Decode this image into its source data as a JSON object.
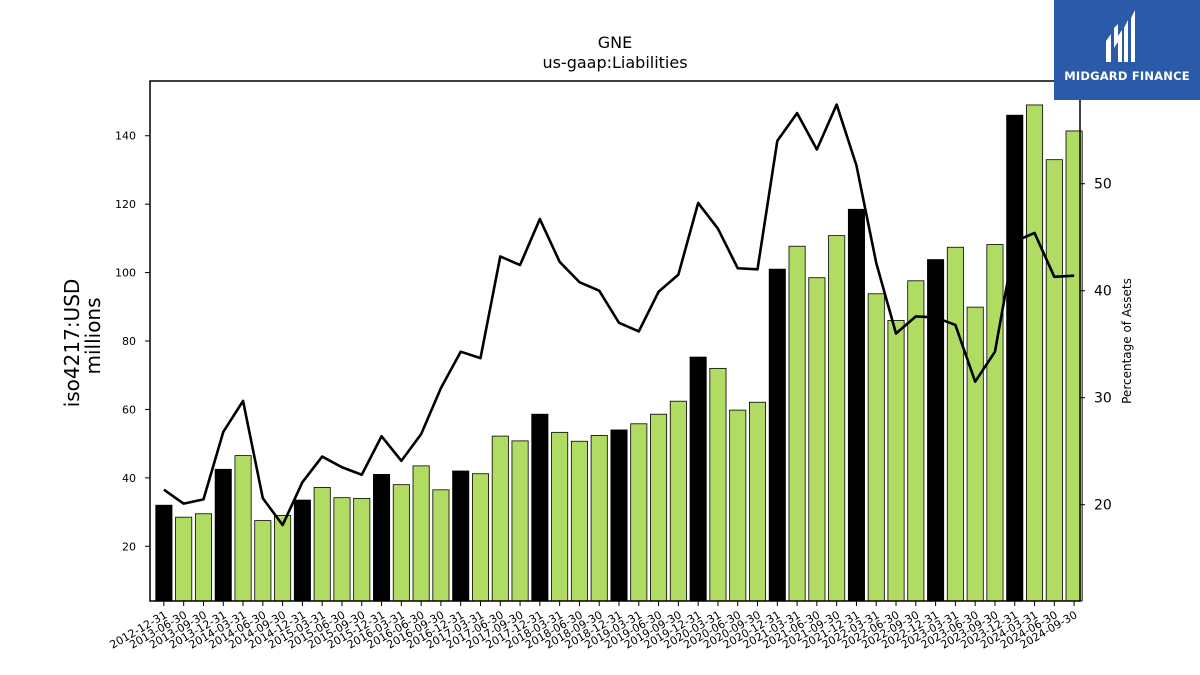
{
  "chart_data": {
    "type": "bar",
    "title": "GNE",
    "subtitle": "us-gaap:Liabilities",
    "ylabel": "iso4217:USD",
    "ylabel2": "millions",
    "y2label": "Percentage of Assets",
    "ylim": [
      4,
      156
    ],
    "y2lim": [
      11,
      59.6
    ],
    "yticks": [
      20,
      40,
      60,
      80,
      100,
      120,
      140
    ],
    "y2ticks": [
      20,
      30,
      40,
      50
    ],
    "categories": [
      "2012-12-31",
      "2013-06-30",
      "2013-09-30",
      "2013-12-31",
      "2014-03-31",
      "2014-06-30",
      "2014-09-30",
      "2014-12-31",
      "2015-03-31",
      "2015-06-30",
      "2015-09-30",
      "2015-12-31",
      "2016-03-31",
      "2016-06-30",
      "2016-09-30",
      "2016-12-31",
      "2017-03-31",
      "2017-06-30",
      "2017-09-30",
      "2017-12-31",
      "2018-03-31",
      "2018-06-30",
      "2018-09-30",
      "2018-12-31",
      "2019-03-31",
      "2019-06-30",
      "2019-09-30",
      "2019-12-31",
      "2020-03-31",
      "2020-06-30",
      "2020-09-30",
      "2020-12-31",
      "2021-03-31",
      "2021-06-30",
      "2021-09-30",
      "2021-12-31",
      "2022-03-31",
      "2022-06-30",
      "2022-09-30",
      "2022-12-31",
      "2023-03-31",
      "2023-06-30",
      "2023-09-30",
      "2023-12-31",
      "2024-03-31",
      "2024-06-30",
      "2024-09-30"
    ],
    "series": [
      {
        "type": "bar",
        "values": [
          32,
          28.5,
          29.5,
          42.5,
          46.5,
          27.5,
          29,
          33.5,
          37.2,
          34.2,
          34,
          41,
          38,
          43.5,
          36.5,
          42,
          41.2,
          52.2,
          50.8,
          58.6,
          53.3,
          50.7,
          52.4,
          54,
          55.8,
          58.6,
          62.4,
          75.3,
          72,
          59.8,
          62.1,
          101,
          107.7,
          98.5,
          110.8,
          118.5,
          93.8,
          86,
          97.6,
          103.8,
          107.4,
          89.9,
          108.2,
          146,
          149,
          133,
          141.4
        ],
        "annual": [
          true,
          false,
          false,
          true,
          false,
          false,
          false,
          true,
          false,
          false,
          false,
          true,
          false,
          false,
          false,
          true,
          false,
          false,
          false,
          true,
          false,
          false,
          false,
          true,
          false,
          false,
          false,
          true,
          false,
          false,
          false,
          true,
          false,
          false,
          false,
          true,
          false,
          false,
          false,
          true,
          false,
          false,
          false,
          true,
          false,
          false,
          false
        ]
      },
      {
        "type": "line",
        "axis": "right",
        "values": [
          21.4,
          20.1,
          20.5,
          26.8,
          29.7,
          20.6,
          18.1,
          22.1,
          24.5,
          23.5,
          22.8,
          26.4,
          24.1,
          26.6,
          30.9,
          34.3,
          33.7,
          43.2,
          42.4,
          46.7,
          42.7,
          40.8,
          40,
          37,
          36.2,
          39.9,
          41.5,
          48.2,
          45.8,
          42.1,
          42,
          54,
          56.6,
          53.2,
          57.4,
          51.7,
          42.6,
          36,
          37.6,
          37.5,
          36.8,
          31.5,
          34.3,
          44.6,
          45.4,
          41.3,
          41.4
        ]
      }
    ],
    "colors": {
      "annual_bar": "#000000",
      "quarter_bar": "#b0dc64",
      "line": "#000000"
    },
    "grid": false
  },
  "logo": {
    "brand": "MIDGARD FINANCE"
  }
}
